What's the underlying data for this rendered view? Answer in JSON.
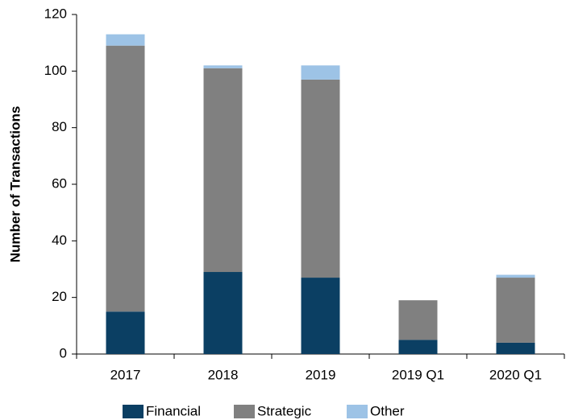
{
  "chart_data": {
    "type": "bar",
    "stacked": true,
    "y_axis_label": "Number of Transactions",
    "categories": [
      "2017",
      "2018",
      "2019",
      "2019 Q1",
      "2020 Q1"
    ],
    "series": [
      {
        "name": "Financial",
        "color": "#0b3f63",
        "values": [
          15,
          29,
          27,
          5,
          4
        ]
      },
      {
        "name": "Strategic",
        "color": "#808080",
        "values": [
          94,
          72,
          70,
          14,
          23
        ]
      },
      {
        "name": "Other",
        "color": "#9dc3e6",
        "values": [
          4,
          1,
          5,
          0,
          1
        ]
      }
    ],
    "ylim": [
      0,
      120
    ],
    "yticks": [
      0,
      20,
      40,
      60,
      80,
      100,
      120
    ],
    "grid": false,
    "legend": "bottom"
  }
}
